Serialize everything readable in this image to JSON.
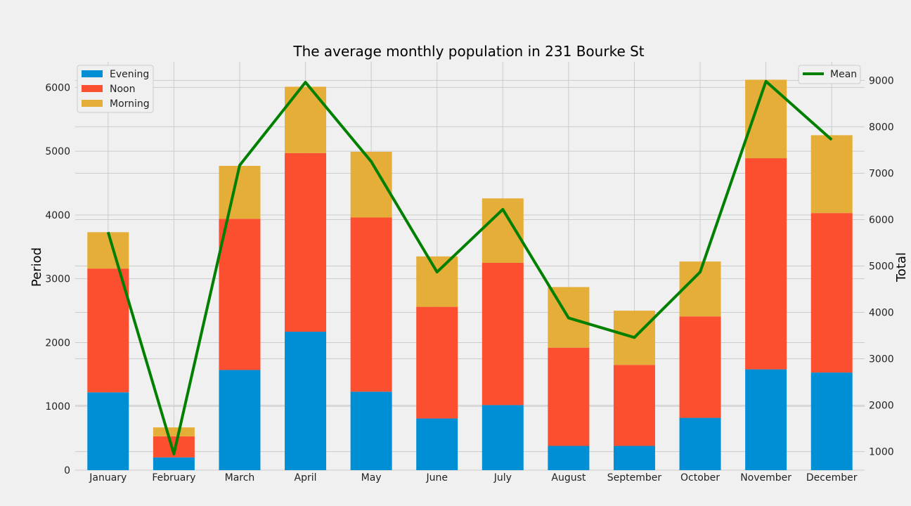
{
  "chart_data": {
    "type": "bar",
    "stacked": true,
    "title": "The average monthly population in 231 Bourke St",
    "categories": [
      "January",
      "February",
      "March",
      "April",
      "May",
      "June",
      "July",
      "August",
      "September",
      "October",
      "November",
      "December"
    ],
    "ylabel": "Period",
    "ylabel_right": "Total",
    "ylim": [
      0,
      6400
    ],
    "ylim_right": [
      600,
      9400
    ],
    "yticks": [
      0,
      1000,
      2000,
      3000,
      4000,
      5000,
      6000
    ],
    "yticks_right": [
      1000,
      2000,
      3000,
      4000,
      5000,
      6000,
      7000,
      8000,
      9000
    ],
    "grid": true,
    "series": [
      {
        "name": "Evening",
        "color": "#008fd5",
        "values": [
          1220,
          200,
          1570,
          2170,
          1230,
          810,
          1020,
          380,
          380,
          820,
          1580,
          1530
        ]
      },
      {
        "name": "Noon",
        "color": "#fc4f30",
        "values": [
          1940,
          330,
          2370,
          2800,
          2730,
          1750,
          2230,
          1540,
          1270,
          1590,
          3310,
          2500
        ]
      },
      {
        "name": "Morning",
        "color": "#e5ae38",
        "values": [
          570,
          140,
          830,
          1040,
          1030,
          790,
          1010,
          950,
          850,
          860,
          1230,
          1220
        ]
      }
    ],
    "line_series": {
      "name": "Mean",
      "color": "#008000",
      "axis": "right",
      "values": [
        5730,
        950,
        7170,
        8960,
        7250,
        4870,
        6220,
        3880,
        3460,
        4870,
        8980,
        7720
      ]
    },
    "legend": {
      "left": "top-left",
      "right": "top-right"
    }
  }
}
